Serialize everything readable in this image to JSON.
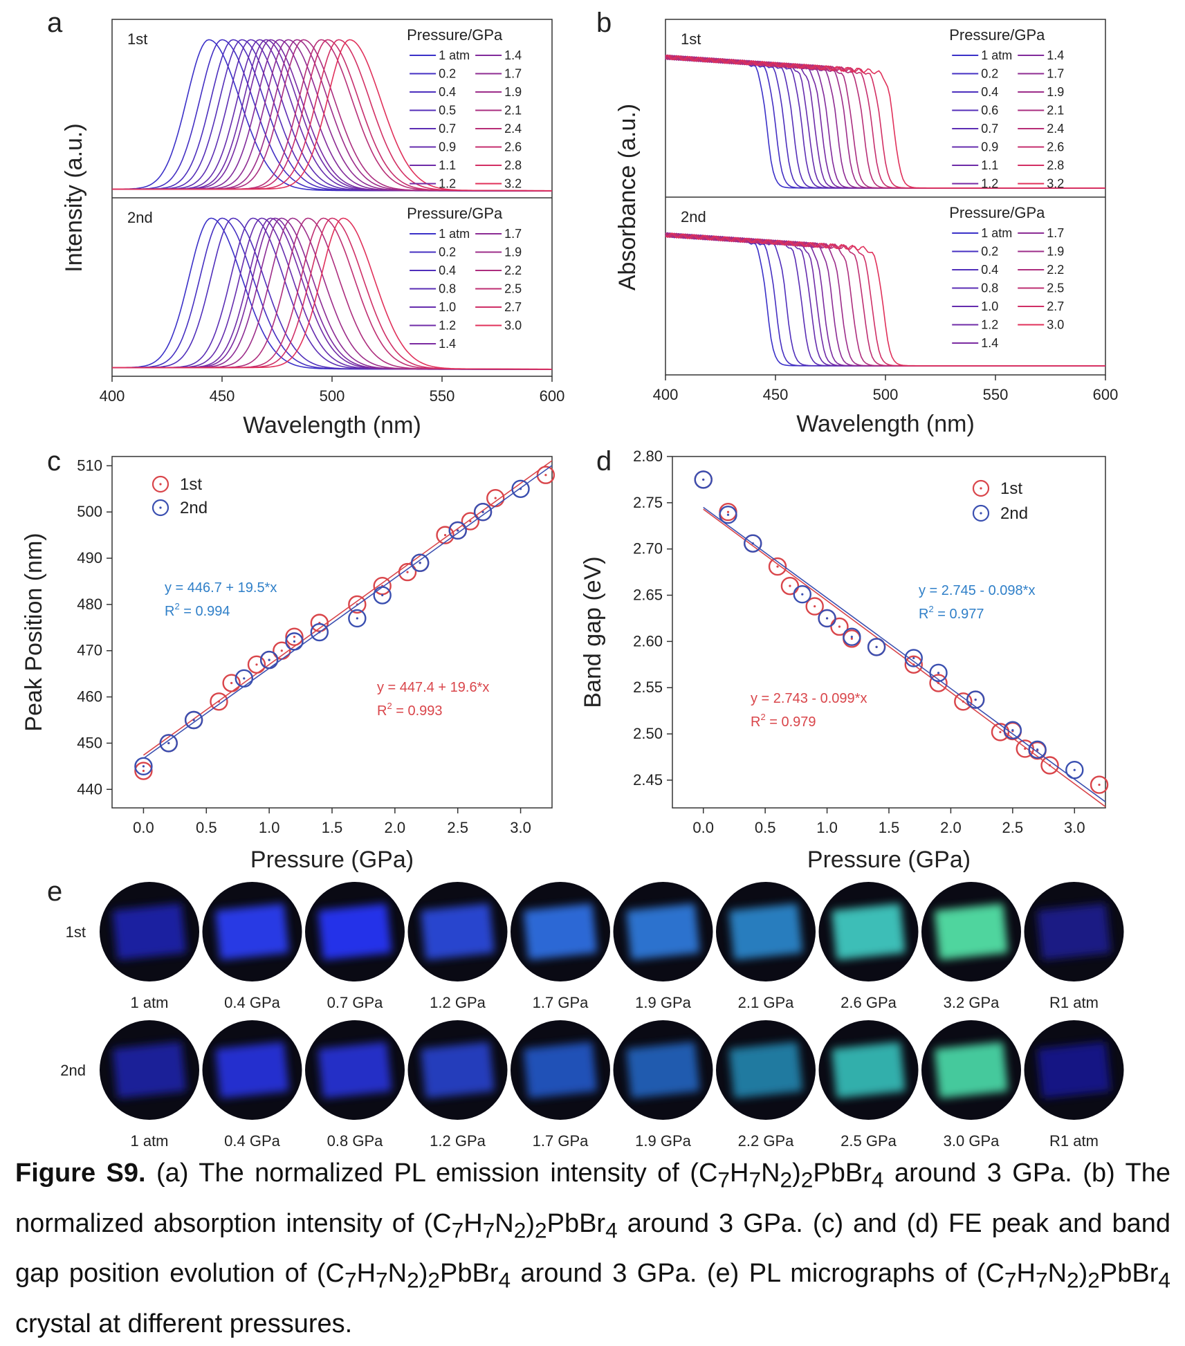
{
  "figure": {
    "panel_letters": [
      "a",
      "b",
      "c",
      "d",
      "e"
    ],
    "caption": {
      "label": "Figure S9.",
      "parts": [
        " (a) The normalized PL emission intensity of (C",
        "7",
        "H",
        "7",
        "N",
        "2",
        ")",
        "2",
        "PbBr",
        "4",
        " around 3 GPa. (b) The normalized absorption intensity of (C",
        "7",
        "H",
        "7",
        "N",
        "2",
        ")",
        "2",
        "PbBr",
        "4",
        " around 3 GPa. (c) and (d) FE peak and band gap position evolution of (C",
        "7",
        "H",
        "7",
        "N",
        "2",
        ")",
        "2",
        "PbBr",
        "4",
        " around 3 GPa. (e) PL micrographs of (C",
        "7",
        "H",
        "7",
        "N",
        "2",
        ")",
        "2",
        "PbBr",
        "4",
        " crystal at different pressures."
      ]
    }
  },
  "chart_data": [
    {
      "panel": "a",
      "type": "line",
      "xlabel": "Wavelength (nm)",
      "ylabel": "Intensity (a.u.)",
      "xlim": [
        400,
        600
      ],
      "xticks": [
        "400",
        "450",
        "500",
        "550",
        "600"
      ],
      "legend_title": "Pressure/GPa",
      "subpanels": [
        {
          "tag": "1st",
          "pressures": [
            "1 atm",
            "0.2",
            "0.4",
            "0.5",
            "0.7",
            "0.9",
            "1.1",
            "1.2",
            "1.4",
            "1.7",
            "1.9",
            "2.1",
            "2.4",
            "2.6",
            "2.8",
            "3.2"
          ],
          "peak_nm": [
            444,
            450,
            455,
            459,
            463,
            467,
            470,
            472,
            476,
            480,
            484,
            487,
            495,
            498,
            503,
            508
          ]
        },
        {
          "tag": "2nd",
          "pressures": [
            "1 atm",
            "0.2",
            "0.4",
            "0.8",
            "1.0",
            "1.2",
            "1.4",
            "1.7",
            "1.9",
            "2.2",
            "2.5",
            "2.7",
            "3.0"
          ],
          "peak_nm": [
            445,
            450,
            455,
            464,
            468,
            472,
            474,
            477,
            482,
            489,
            496,
            500,
            505
          ]
        }
      ]
    },
    {
      "panel": "b",
      "type": "line",
      "xlabel": "Wavelength (nm)",
      "ylabel": "Absorbance (a.u.)",
      "xlim": [
        400,
        600
      ],
      "xticks": [
        "400",
        "450",
        "500",
        "550",
        "600"
      ],
      "legend_title": "Pressure/GPa",
      "subpanels": [
        {
          "tag": "1st",
          "pressures": [
            "1 atm",
            "0.2",
            "0.4",
            "0.6",
            "0.7",
            "0.9",
            "1.1",
            "1.2",
            "1.4",
            "1.7",
            "1.9",
            "2.1",
            "2.4",
            "2.6",
            "2.8",
            "3.2"
          ],
          "edge_nm": [
            446,
            450,
            454,
            458,
            462,
            465,
            468,
            471,
            474,
            478,
            482,
            485,
            490,
            494,
            498,
            504
          ]
        },
        {
          "tag": "2nd",
          "pressures": [
            "1 atm",
            "0.2",
            "0.4",
            "0.8",
            "1.0",
            "1.2",
            "1.4",
            "1.7",
            "1.9",
            "2.2",
            "2.5",
            "2.7",
            "3.0"
          ],
          "edge_nm": [
            446,
            450,
            455,
            462,
            466,
            469,
            472,
            476,
            480,
            485,
            490,
            494,
            499
          ]
        }
      ]
    },
    {
      "panel": "c",
      "type": "scatter",
      "xlabel": "Pressure (GPa)",
      "ylabel": "Peak Position (nm)",
      "xlim": [
        -0.25,
        3.25
      ],
      "ylim": [
        436,
        512
      ],
      "xticks": [
        "0.0",
        "0.5",
        "1.0",
        "1.5",
        "2.0",
        "2.5",
        "3.0"
      ],
      "yticks": [
        "440",
        "450",
        "460",
        "470",
        "480",
        "490",
        "500",
        "510"
      ],
      "series": [
        {
          "name": "1st",
          "color": "#d9454a",
          "x": [
            0,
            0.2,
            0.4,
            0.6,
            0.7,
            0.9,
            1.0,
            1.1,
            1.2,
            1.4,
            1.7,
            1.9,
            2.1,
            2.2,
            2.4,
            2.5,
            2.6,
            2.7,
            2.8,
            3.2
          ],
          "y": [
            444,
            450,
            455,
            459,
            463,
            467,
            468,
            470,
            473,
            476,
            480,
            484,
            487,
            489,
            495,
            496,
            498,
            500,
            503,
            508
          ],
          "fit": {
            "intercept": 447.4,
            "slope": 19.6
          },
          "equation": "y = 447.4 + 19.6*x",
          "r2_label": "R",
          "r2_exp": "2",
          "r2_value": " = 0.993"
        },
        {
          "name": "2nd",
          "color": "#3a4fb0",
          "x": [
            0,
            0.2,
            0.4,
            0.8,
            1.0,
            1.2,
            1.4,
            1.7,
            1.9,
            2.2,
            2.5,
            2.7,
            3.0
          ],
          "y": [
            445,
            450,
            455,
            464,
            468,
            472,
            474,
            477,
            482,
            489,
            496,
            500,
            505
          ],
          "fit": {
            "intercept": 446.7,
            "slope": 19.5
          },
          "equation": "y = 446.7 + 19.5*x",
          "r2_label": "R",
          "r2_exp": "2",
          "r2_value": " = 0.994"
        }
      ]
    },
    {
      "panel": "d",
      "type": "scatter",
      "xlabel": "Pressure (GPa)",
      "ylabel": "Band gap (eV)",
      "xlim": [
        -0.25,
        3.25
      ],
      "ylim": [
        2.42,
        2.8
      ],
      "xticks": [
        "0.0",
        "0.5",
        "1.0",
        "1.5",
        "2.0",
        "2.5",
        "3.0"
      ],
      "yticks": [
        "2.45",
        "2.50",
        "2.55",
        "2.60",
        "2.65",
        "2.70",
        "2.75",
        "2.80"
      ],
      "series": [
        {
          "name": "1st",
          "color": "#d9454a",
          "x": [
            0,
            0.2,
            0.4,
            0.6,
            0.7,
            0.9,
            1.0,
            1.1,
            1.2,
            1.4,
            1.7,
            1.9,
            2.1,
            2.2,
            2.4,
            2.5,
            2.6,
            2.7,
            2.8,
            3.2
          ],
          "y": [
            2.775,
            2.74,
            2.706,
            2.681,
            2.66,
            2.638,
            2.625,
            2.616,
            2.603,
            2.594,
            2.575,
            2.555,
            2.535,
            2.537,
            2.502,
            2.503,
            2.484,
            2.482,
            2.466,
            2.445
          ],
          "fit": {
            "intercept": 2.743,
            "slope": -0.099
          },
          "equation": "y = 2.743 - 0.099*x",
          "r2_label": "R",
          "r2_exp": "2",
          "r2_value": " = 0.979"
        },
        {
          "name": "2nd",
          "color": "#3a4fb0",
          "x": [
            0,
            0.2,
            0.4,
            0.8,
            1.0,
            1.2,
            1.4,
            1.7,
            1.9,
            2.2,
            2.5,
            2.7,
            3.0
          ],
          "y": [
            2.775,
            2.737,
            2.706,
            2.651,
            2.625,
            2.605,
            2.594,
            2.582,
            2.566,
            2.537,
            2.504,
            2.483,
            2.461
          ],
          "fit": {
            "intercept": 2.745,
            "slope": -0.098
          },
          "equation": "y = 2.745 - 0.098*x",
          "r2_label": "R",
          "r2_exp": "2",
          "r2_value": " = 0.977"
        }
      ]
    }
  ],
  "micrographs": {
    "rows": [
      {
        "tag": "1st",
        "labels": [
          "1 atm",
          "0.4 GPa",
          "0.7 GPa",
          "1.2 GPa",
          "1.7 GPa",
          "1.9 GPa",
          "2.1 GPa",
          "2.6 GPa",
          "3.2 GPa",
          "R1 atm"
        ],
        "colors": [
          "#1c24a8",
          "#2a3cf0",
          "#2536f5",
          "#2c48d8",
          "#2f6ee0",
          "#2d78d8",
          "#2a84c8",
          "#3fc8c0",
          "#52e0a6",
          "#1a1a8a"
        ]
      },
      {
        "tag": "2nd",
        "labels": [
          "1 atm",
          "0.4 GPa",
          "0.8 GPa",
          "1.2 GPa",
          "1.7 GPa",
          "1.9 GPa",
          "2.2 GPa",
          "2.5 GPa",
          "3.0 GPa",
          "R1 atm"
        ],
        "colors": [
          "#1a22a0",
          "#2533d8",
          "#2533d0",
          "#2540c4",
          "#2454c0",
          "#2260b8",
          "#2380a8",
          "#36b8b4",
          "#48d4a4",
          "#18188a"
        ]
      }
    ]
  }
}
